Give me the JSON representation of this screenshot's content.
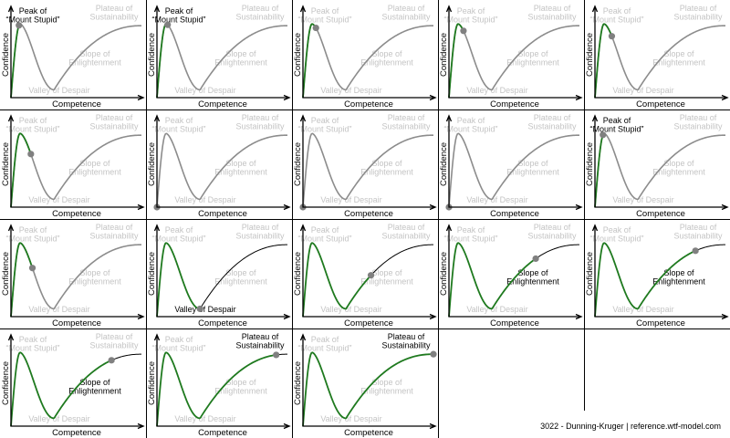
{
  "labels": {
    "peak": [
      "Peak of",
      "“Mount Stupid”"
    ],
    "despair": [
      "Valley of Despair"
    ],
    "slope": [
      "Slope of",
      "Enlightenment"
    ],
    "plateau": [
      "Plateau of",
      "Sustainability"
    ],
    "x_axis": "Competence",
    "y_axis": "Confidence"
  },
  "frames": [
    {
      "progress": 0.07,
      "style": "grey",
      "dark": "peak"
    },
    {
      "progress": 0.09,
      "style": "grey",
      "dark": "peak"
    },
    {
      "progress": 0.105,
      "style": "grey",
      "dark": null
    },
    {
      "progress": 0.115,
      "style": "grey",
      "dark": null
    },
    {
      "progress": 0.13,
      "style": "grey",
      "dark": null
    },
    {
      "progress": 0.15,
      "style": "grey",
      "dark": null
    },
    {
      "progress": 0.0,
      "style": "grey",
      "dark": null
    },
    {
      "progress": 0.0,
      "style": "grey",
      "dark": null
    },
    {
      "progress": 0.0,
      "style": "grey",
      "dark": null
    },
    {
      "progress": 0.07,
      "style": "grey",
      "dark": "peak"
    },
    {
      "progress": 0.16,
      "style": "grey",
      "dark": null
    },
    {
      "progress": 0.3,
      "style": "black",
      "dark": "despair"
    },
    {
      "progress": 0.5,
      "style": "black",
      "dark": null
    },
    {
      "progress": 0.65,
      "style": "black",
      "dark": "slope"
    },
    {
      "progress": 0.76,
      "style": "black",
      "dark": "slope"
    },
    {
      "progress": 0.76,
      "style": "black",
      "dark": "slope"
    },
    {
      "progress": 0.91,
      "style": "black",
      "dark": "plateau"
    },
    {
      "progress": 1.0,
      "style": "black",
      "dark": "plateau"
    }
  ],
  "caption": "3022 - Dunning-Kruger | reference.wtf-model.com"
}
